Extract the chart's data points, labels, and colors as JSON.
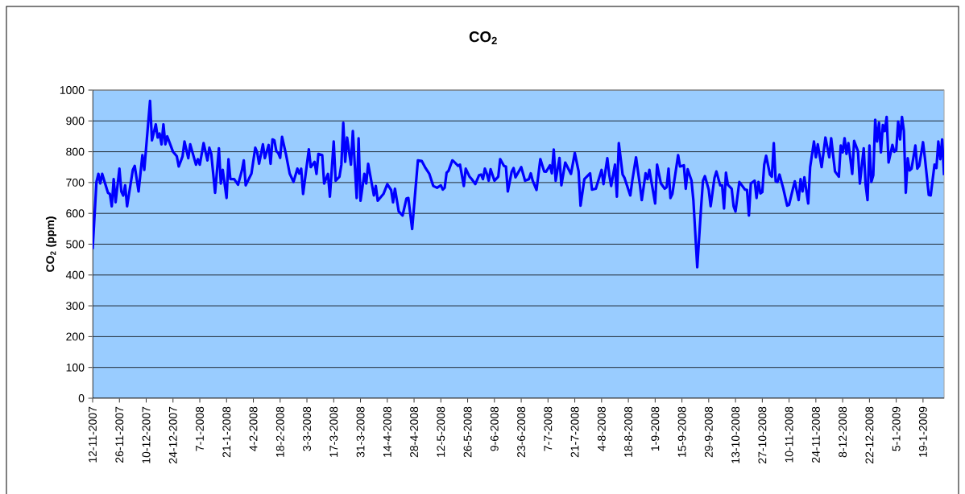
{
  "chart_data": {
    "type": "line",
    "title": "CO$_{2}$",
    "ylabel": "CO$_{2}$ (ppm)",
    "grid": "y",
    "ylim": [
      0,
      1000
    ],
    "yticks": [
      0,
      100,
      200,
      300,
      400,
      500,
      600,
      700,
      800,
      900,
      1000
    ],
    "xlim": [
      "2007-11-12",
      "2009-01-30"
    ],
    "xticks": [
      {
        "value": "2007-11-12",
        "label": "12-11-2007"
      },
      {
        "value": "2007-11-26",
        "label": "26-11-2007"
      },
      {
        "value": "2007-12-10",
        "label": "10-12-2007"
      },
      {
        "value": "2007-12-24",
        "label": "24-12-2007"
      },
      {
        "value": "2008-01-07",
        "label": "7-1-2008"
      },
      {
        "value": "2008-01-21",
        "label": "21-1-2008"
      },
      {
        "value": "2008-02-04",
        "label": "4-2-2008"
      },
      {
        "value": "2008-02-18",
        "label": "18-2-2008"
      },
      {
        "value": "2008-03-03",
        "label": "3-3-2008"
      },
      {
        "value": "2008-03-17",
        "label": "17-3-2008"
      },
      {
        "value": "2008-03-31",
        "label": "31-3-2008"
      },
      {
        "value": "2008-04-14",
        "label": "14-4-2008"
      },
      {
        "value": "2008-04-28",
        "label": "28-4-2008"
      },
      {
        "value": "2008-05-12",
        "label": "12-5-2008"
      },
      {
        "value": "2008-05-26",
        "label": "26-5-2008"
      },
      {
        "value": "2008-06-09",
        "label": "9-6-2008"
      },
      {
        "value": "2008-06-23",
        "label": "23-6-2008"
      },
      {
        "value": "2008-07-07",
        "label": "7-7-2008"
      },
      {
        "value": "2008-07-21",
        "label": "21-7-2008"
      },
      {
        "value": "2008-08-04",
        "label": "4-8-2008"
      },
      {
        "value": "2008-08-18",
        "label": "18-8-2008"
      },
      {
        "value": "2008-09-01",
        "label": "1-9-2008"
      },
      {
        "value": "2008-09-15",
        "label": "15-9-2008"
      },
      {
        "value": "2008-09-29",
        "label": "29-9-2008"
      },
      {
        "value": "2008-10-13",
        "label": "13-10-2008"
      },
      {
        "value": "2008-10-27",
        "label": "27-10-2008"
      },
      {
        "value": "2008-11-10",
        "label": "10-11-2008"
      },
      {
        "value": "2008-11-24",
        "label": "24-11-2008"
      },
      {
        "value": "2008-12-08",
        "label": "8-12-2008"
      },
      {
        "value": "2008-12-22",
        "label": "22-12-2008"
      },
      {
        "value": "2009-01-05",
        "label": "5-1-2009"
      },
      {
        "value": "2009-01-19",
        "label": "19-1-2009"
      }
    ],
    "x": [
      "2007-11-12",
      "2007-11-14",
      "2007-11-15",
      "2007-11-16",
      "2007-11-17",
      "2007-11-20",
      "2007-11-21",
      "2007-11-22",
      "2007-11-23",
      "2007-11-24",
      "2007-11-26",
      "2007-11-27",
      "2007-11-28",
      "2007-11-29",
      "2007-11-30",
      "2007-12-03",
      "2007-12-04",
      "2007-12-06",
      "2007-12-08",
      "2007-12-09",
      "2007-12-12",
      "2007-12-13",
      "2007-12-15",
      "2007-12-16",
      "2007-12-17",
      "2007-12-18",
      "2007-12-19",
      "2007-12-20",
      "2007-12-21",
      "2007-12-24",
      "2007-12-26",
      "2007-12-27",
      "2007-12-29",
      "2007-12-30",
      "2008-01-01",
      "2008-01-02",
      "2008-01-05",
      "2008-01-06",
      "2008-01-07",
      "2008-01-09",
      "2008-01-11",
      "2008-01-12",
      "2008-01-13",
      "2008-01-15",
      "2008-01-17",
      "2008-01-18",
      "2008-01-19",
      "2008-01-21",
      "2008-01-22",
      "2008-01-23",
      "2008-01-25",
      "2008-01-27",
      "2008-01-29",
      "2008-01-30",
      "2008-01-31",
      "2008-02-03",
      "2008-02-05",
      "2008-02-06",
      "2008-02-07",
      "2008-02-09",
      "2008-02-10",
      "2008-02-12",
      "2008-02-13",
      "2008-02-14",
      "2008-02-15",
      "2008-02-16",
      "2008-02-17",
      "2008-02-18",
      "2008-02-19",
      "2008-02-21",
      "2008-02-23",
      "2008-02-25",
      "2008-02-27",
      "2008-02-28",
      "2008-02-29",
      "2008-03-01",
      "2008-03-04",
      "2008-03-05",
      "2008-03-07",
      "2008-03-08",
      "2008-03-09",
      "2008-03-11",
      "2008-03-12",
      "2008-03-14",
      "2008-03-15",
      "2008-03-17",
      "2008-03-18",
      "2008-03-20",
      "2008-03-21",
      "2008-03-22",
      "2008-03-23",
      "2008-03-24",
      "2008-03-26",
      "2008-03-27",
      "2008-03-29",
      "2008-03-30",
      "2008-03-31",
      "2008-04-02",
      "2008-04-03",
      "2008-04-04",
      "2008-04-07",
      "2008-04-08",
      "2008-04-09",
      "2008-04-12",
      "2008-04-14",
      "2008-04-16",
      "2008-04-17",
      "2008-04-18",
      "2008-04-20",
      "2008-04-22",
      "2008-04-24",
      "2008-04-25",
      "2008-04-27",
      "2008-04-30",
      "2008-05-02",
      "2008-05-04",
      "2008-05-06",
      "2008-05-08",
      "2008-05-10",
      "2008-05-12",
      "2008-05-13",
      "2008-05-14",
      "2008-05-15",
      "2008-05-16",
      "2008-05-18",
      "2008-05-19",
      "2008-05-21",
      "2008-05-22",
      "2008-05-24",
      "2008-05-25",
      "2008-05-27",
      "2008-05-28",
      "2008-05-30",
      "2008-06-01",
      "2008-06-02",
      "2008-06-03",
      "2008-06-04",
      "2008-06-05",
      "2008-06-06",
      "2008-06-07",
      "2008-06-09",
      "2008-06-11",
      "2008-06-12",
      "2008-06-14",
      "2008-06-15",
      "2008-06-16",
      "2008-06-18",
      "2008-06-19",
      "2008-06-20",
      "2008-06-23",
      "2008-06-25",
      "2008-06-27",
      "2008-06-28",
      "2008-06-29",
      "2008-07-01",
      "2008-07-03",
      "2008-07-05",
      "2008-07-06",
      "2008-07-08",
      "2008-07-09",
      "2008-07-10",
      "2008-07-11",
      "2008-07-13",
      "2008-07-14",
      "2008-07-16",
      "2008-07-19",
      "2008-07-21",
      "2008-07-23",
      "2008-07-24",
      "2008-07-26",
      "2008-07-29",
      "2008-07-30",
      "2008-08-01",
      "2008-08-04",
      "2008-08-05",
      "2008-08-07",
      "2008-08-08",
      "2008-08-09",
      "2008-08-11",
      "2008-08-12",
      "2008-08-13",
      "2008-08-15",
      "2008-08-16",
      "2008-08-19",
      "2008-08-20",
      "2008-08-22",
      "2008-08-24",
      "2008-08-25",
      "2008-08-27",
      "2008-08-28",
      "2008-08-29",
      "2008-09-01",
      "2008-09-02",
      "2008-09-04",
      "2008-09-06",
      "2008-09-07",
      "2008-09-08",
      "2008-09-09",
      "2008-09-10",
      "2008-09-13",
      "2008-09-14",
      "2008-09-16",
      "2008-09-17",
      "2008-09-18",
      "2008-09-20",
      "2008-09-21",
      "2008-09-23",
      "2008-09-25",
      "2008-09-26",
      "2008-09-27",
      "2008-09-29",
      "2008-09-30",
      "2008-10-02",
      "2008-10-03",
      "2008-10-05",
      "2008-10-06",
      "2008-10-07",
      "2008-10-08",
      "2008-10-09",
      "2008-10-11",
      "2008-10-12",
      "2008-10-13",
      "2008-10-15",
      "2008-10-18",
      "2008-10-19",
      "2008-10-20",
      "2008-10-21",
      "2008-10-23",
      "2008-10-24",
      "2008-10-25",
      "2008-10-26",
      "2008-10-27",
      "2008-10-28",
      "2008-10-29",
      "2008-10-31",
      "2008-11-01",
      "2008-11-02",
      "2008-11-03",
      "2008-11-04",
      "2008-11-05",
      "2008-11-07",
      "2008-11-09",
      "2008-11-10",
      "2008-11-12",
      "2008-11-13",
      "2008-11-15",
      "2008-11-16",
      "2008-11-17",
      "2008-11-18",
      "2008-11-20",
      "2008-11-21",
      "2008-11-23",
      "2008-11-24",
      "2008-11-25",
      "2008-11-27",
      "2008-11-29",
      "2008-12-01",
      "2008-12-02",
      "2008-12-04",
      "2008-12-06",
      "2008-12-07",
      "2008-12-08",
      "2008-12-09",
      "2008-12-10",
      "2008-12-11",
      "2008-12-13",
      "2008-12-14",
      "2008-12-16",
      "2008-12-17",
      "2008-12-19",
      "2008-12-20",
      "2008-12-21",
      "2008-12-22",
      "2008-12-23",
      "2008-12-24",
      "2008-12-25",
      "2008-12-26",
      "2008-12-27",
      "2008-12-28",
      "2008-12-29",
      "2008-12-30",
      "2008-12-31",
      "2009-01-01",
      "2009-01-03",
      "2009-01-04",
      "2009-01-05",
      "2009-01-06",
      "2009-01-07",
      "2009-01-08",
      "2009-01-09",
      "2009-01-10",
      "2009-01-11",
      "2009-01-12",
      "2009-01-13",
      "2009-01-15",
      "2009-01-16",
      "2009-01-17",
      "2009-01-19",
      "2009-01-20",
      "2009-01-22",
      "2009-01-23",
      "2009-01-25",
      "2009-01-26",
      "2009-01-27",
      "2009-01-28",
      "2009-01-29",
      "2009-01-30"
    ],
    "series": [
      {
        "color": "#0000ff",
        "values": [
          484,
          702,
          728,
          697,
          728,
          667,
          663,
          623,
          711,
          636,
          745,
          671,
          658,
          691,
          623,
          741,
          754,
          671,
          789,
          741,
          965,
          837,
          889,
          846,
          859,
          824,
          889,
          824,
          850,
          800,
          785,
          752,
          785,
          833,
          779,
          824,
          758,
          776,
          758,
          828,
          772,
          813,
          793,
          667,
          811,
          697,
          741,
          650,
          776,
          711,
          711,
          693,
          739,
          772,
          691,
          729,
          813,
          798,
          761,
          824,
          779,
          822,
          761,
          840,
          837,
          802,
          796,
          780,
          848,
          793,
          729,
          702,
          745,
          729,
          745,
          663,
          808,
          750,
          767,
          728,
          793,
          789,
          697,
          728,
          654,
          833,
          706,
          719,
          758,
          894,
          767,
          846,
          758,
          867,
          650,
          844,
          641,
          728,
          697,
          761,
          658,
          689,
          641,
          663,
          695,
          676,
          636,
          680,
          606,
          593,
          648,
          650,
          549,
          772,
          770,
          747,
          728,
          689,
          683,
          691,
          677,
          683,
          732,
          738,
          772,
          767,
          754,
          758,
          689,
          745,
          719,
          712,
          695,
          724,
          726,
          711,
          745,
          729,
          706,
          743,
          706,
          719,
          776,
          754,
          752,
          671,
          735,
          747,
          717,
          750,
          706,
          711,
          730,
          706,
          676,
          776,
          736,
          735,
          756,
          730,
          807,
          706,
          780,
          691,
          765,
          728,
          796,
          736,
          625,
          711,
          730,
          677,
          680,
          741,
          695,
          779,
          726,
          689,
          758,
          654,
          828,
          726,
          715,
          658,
          704,
          782,
          693,
          643,
          730,
          711,
          741,
          632,
          758,
          697,
          680,
          685,
          745,
          650,
          663,
          789,
          752,
          756,
          680,
          743,
          706,
          641,
          425,
          619,
          706,
          721,
          677,
          623,
          715,
          736,
          691,
          691,
          616,
          732,
          693,
          680,
          623,
          606,
          702,
          677,
          676,
          593,
          697,
          706,
          650,
          702,
          665,
          669,
          758,
          787,
          726,
          719,
          828,
          704,
          702,
          726,
          680,
          625,
          628,
          680,
          704,
          643,
          711,
          671,
          717,
          632,
          750,
          833,
          782,
          824,
          750,
          846,
          782,
          844,
          736,
          719,
          820,
          798,
          844,
          793,
          828,
          728,
          835,
          802,
          697,
          811,
          693,
          643,
          820,
          702,
          724,
          904,
          833,
          894,
          798,
          887,
          867,
          913,
          765,
          822,
          800,
          805,
          898,
          840,
          913,
          867,
          667,
          779,
          739,
          745,
          820,
          745,
          754,
          831,
          779,
          660,
          658,
          758,
          747,
          833,
          776,
          840,
          724
        ]
      }
    ]
  }
}
